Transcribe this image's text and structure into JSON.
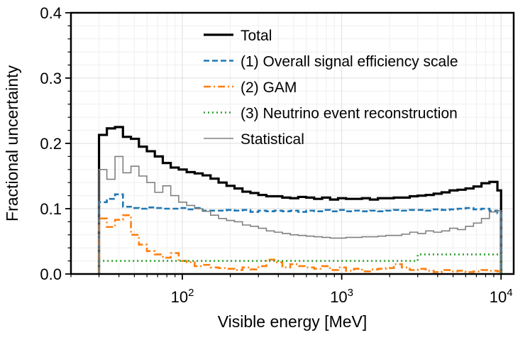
{
  "chart_data": {
    "type": "line",
    "step": true,
    "x_scale": "log",
    "xlabel": "Visible energy [MeV]",
    "ylabel": "Fractional uncertainty",
    "xlim": [
      20,
      12000
    ],
    "ylim": [
      0,
      0.4
    ],
    "x_tick_base": "10",
    "x_ticks": [
      {
        "value": 100,
        "exp": "2"
      },
      {
        "value": 1000,
        "exp": "3"
      },
      {
        "value": 10000,
        "exp": "4"
      }
    ],
    "y_ticks": [
      {
        "value": 0.0,
        "label": "0.0"
      },
      {
        "value": 0.1,
        "label": "0.1"
      },
      {
        "value": 0.2,
        "label": "0.2"
      },
      {
        "value": 0.3,
        "label": "0.3"
      },
      {
        "value": 0.4,
        "label": "0.4"
      }
    ],
    "grid": true,
    "legend_position": "top-right",
    "bin_edges": [
      30,
      33.6,
      37.8,
      42.4,
      47.6,
      53.4,
      59.9,
      67.2,
      75.4,
      84.6,
      94.9,
      106.5,
      119.5,
      134.1,
      150.4,
      168.8,
      189.4,
      212.5,
      238.4,
      267.5,
      300.1,
      336.7,
      377.8,
      423.9,
      475.6,
      533.6,
      598.7,
      671.7,
      753.7,
      845.6,
      948.8,
      1064.5,
      1194.4,
      1340.1,
      1503.6,
      1687.1,
      1892.9,
      2123.9,
      2383,
      2673.8,
      3000,
      3366.1,
      3776.8,
      4237.6,
      4754.7,
      5334.8,
      5985.7,
      6716.1,
      7535.5,
      8455,
      9486.6,
      10000
    ],
    "series": [
      {
        "name": "Total",
        "color": "#000000",
        "style": "solid-thick",
        "values": [
          0.213,
          0.223,
          0.225,
          0.21,
          0.207,
          0.195,
          0.188,
          0.18,
          0.17,
          0.163,
          0.16,
          0.156,
          0.154,
          0.151,
          0.146,
          0.14,
          0.135,
          0.131,
          0.126,
          0.124,
          0.121,
          0.119,
          0.119,
          0.117,
          0.116,
          0.118,
          0.117,
          0.115,
          0.117,
          0.114,
          0.116,
          0.115,
          0.115,
          0.116,
          0.114,
          0.116,
          0.116,
          0.117,
          0.117,
          0.119,
          0.12,
          0.121,
          0.123,
          0.125,
          0.128,
          0.129,
          0.131,
          0.134,
          0.139,
          0.141,
          0.128
        ]
      },
      {
        "name": "(1) Overall signal efficiency scale",
        "color": "#1f77b4",
        "style": "dashed",
        "values": [
          0.11,
          0.115,
          0.122,
          0.103,
          0.101,
          0.1,
          0.102,
          0.101,
          0.1,
          0.1,
          0.101,
          0.099,
          0.101,
          0.097,
          0.097,
          0.097,
          0.098,
          0.097,
          0.098,
          0.095,
          0.097,
          0.096,
          0.097,
          0.096,
          0.097,
          0.095,
          0.097,
          0.096,
          0.098,
          0.096,
          0.098,
          0.096,
          0.097,
          0.096,
          0.097,
          0.096,
          0.097,
          0.098,
          0.097,
          0.098,
          0.098,
          0.097,
          0.099,
          0.098,
          0.099,
          0.1,
          0.101,
          0.099,
          0.1,
          0.097,
          0.093
        ]
      },
      {
        "name": "(2) GAM",
        "color": "#ff7f0e",
        "style": "dashdot",
        "values": [
          0.085,
          0.072,
          0.083,
          0.09,
          0.06,
          0.045,
          0.035,
          0.03,
          0.025,
          0.032,
          0.02,
          0.018,
          0.012,
          0.014,
          0.01,
          0.009,
          0.008,
          0.006,
          0.01,
          0.007,
          0.012,
          0.022,
          0.018,
          0.01,
          0.015,
          0.012,
          0.01,
          0.008,
          0.012,
          0.006,
          0.01,
          0.005,
          0.008,
          0.004,
          0.007,
          0.008,
          0.009,
          0.015,
          0.01,
          0.006,
          0.008,
          0.005,
          0.003,
          0.006,
          0.004,
          0.005,
          0.003,
          0.004,
          0.006,
          0.005,
          0.004
        ]
      },
      {
        "name": "(3) Neutrino event reconstruction",
        "color": "#2ca02c",
        "style": "dotted",
        "values": [
          0.02,
          0.02,
          0.02,
          0.02,
          0.02,
          0.02,
          0.02,
          0.02,
          0.02,
          0.02,
          0.02,
          0.02,
          0.02,
          0.02,
          0.02,
          0.02,
          0.02,
          0.02,
          0.02,
          0.02,
          0.02,
          0.02,
          0.02,
          0.02,
          0.02,
          0.02,
          0.02,
          0.02,
          0.02,
          0.02,
          0.02,
          0.02,
          0.02,
          0.02,
          0.02,
          0.02,
          0.02,
          0.02,
          0.02,
          0.02,
          0.03,
          0.03,
          0.03,
          0.03,
          0.03,
          0.03,
          0.03,
          0.03,
          0.03,
          0.03,
          0.03
        ]
      },
      {
        "name": "Statistical",
        "color": "#808080",
        "style": "solid-thin",
        "values": [
          0.16,
          0.145,
          0.18,
          0.155,
          0.165,
          0.15,
          0.14,
          0.125,
          0.135,
          0.12,
          0.11,
          0.105,
          0.1,
          0.096,
          0.09,
          0.085,
          0.082,
          0.08,
          0.075,
          0.073,
          0.07,
          0.066,
          0.064,
          0.062,
          0.06,
          0.059,
          0.058,
          0.057,
          0.056,
          0.055,
          0.055,
          0.056,
          0.056,
          0.057,
          0.057,
          0.058,
          0.059,
          0.059,
          0.061,
          0.064,
          0.062,
          0.066,
          0.064,
          0.066,
          0.07,
          0.068,
          0.073,
          0.078,
          0.085,
          0.095,
          0.097
        ]
      }
    ]
  }
}
